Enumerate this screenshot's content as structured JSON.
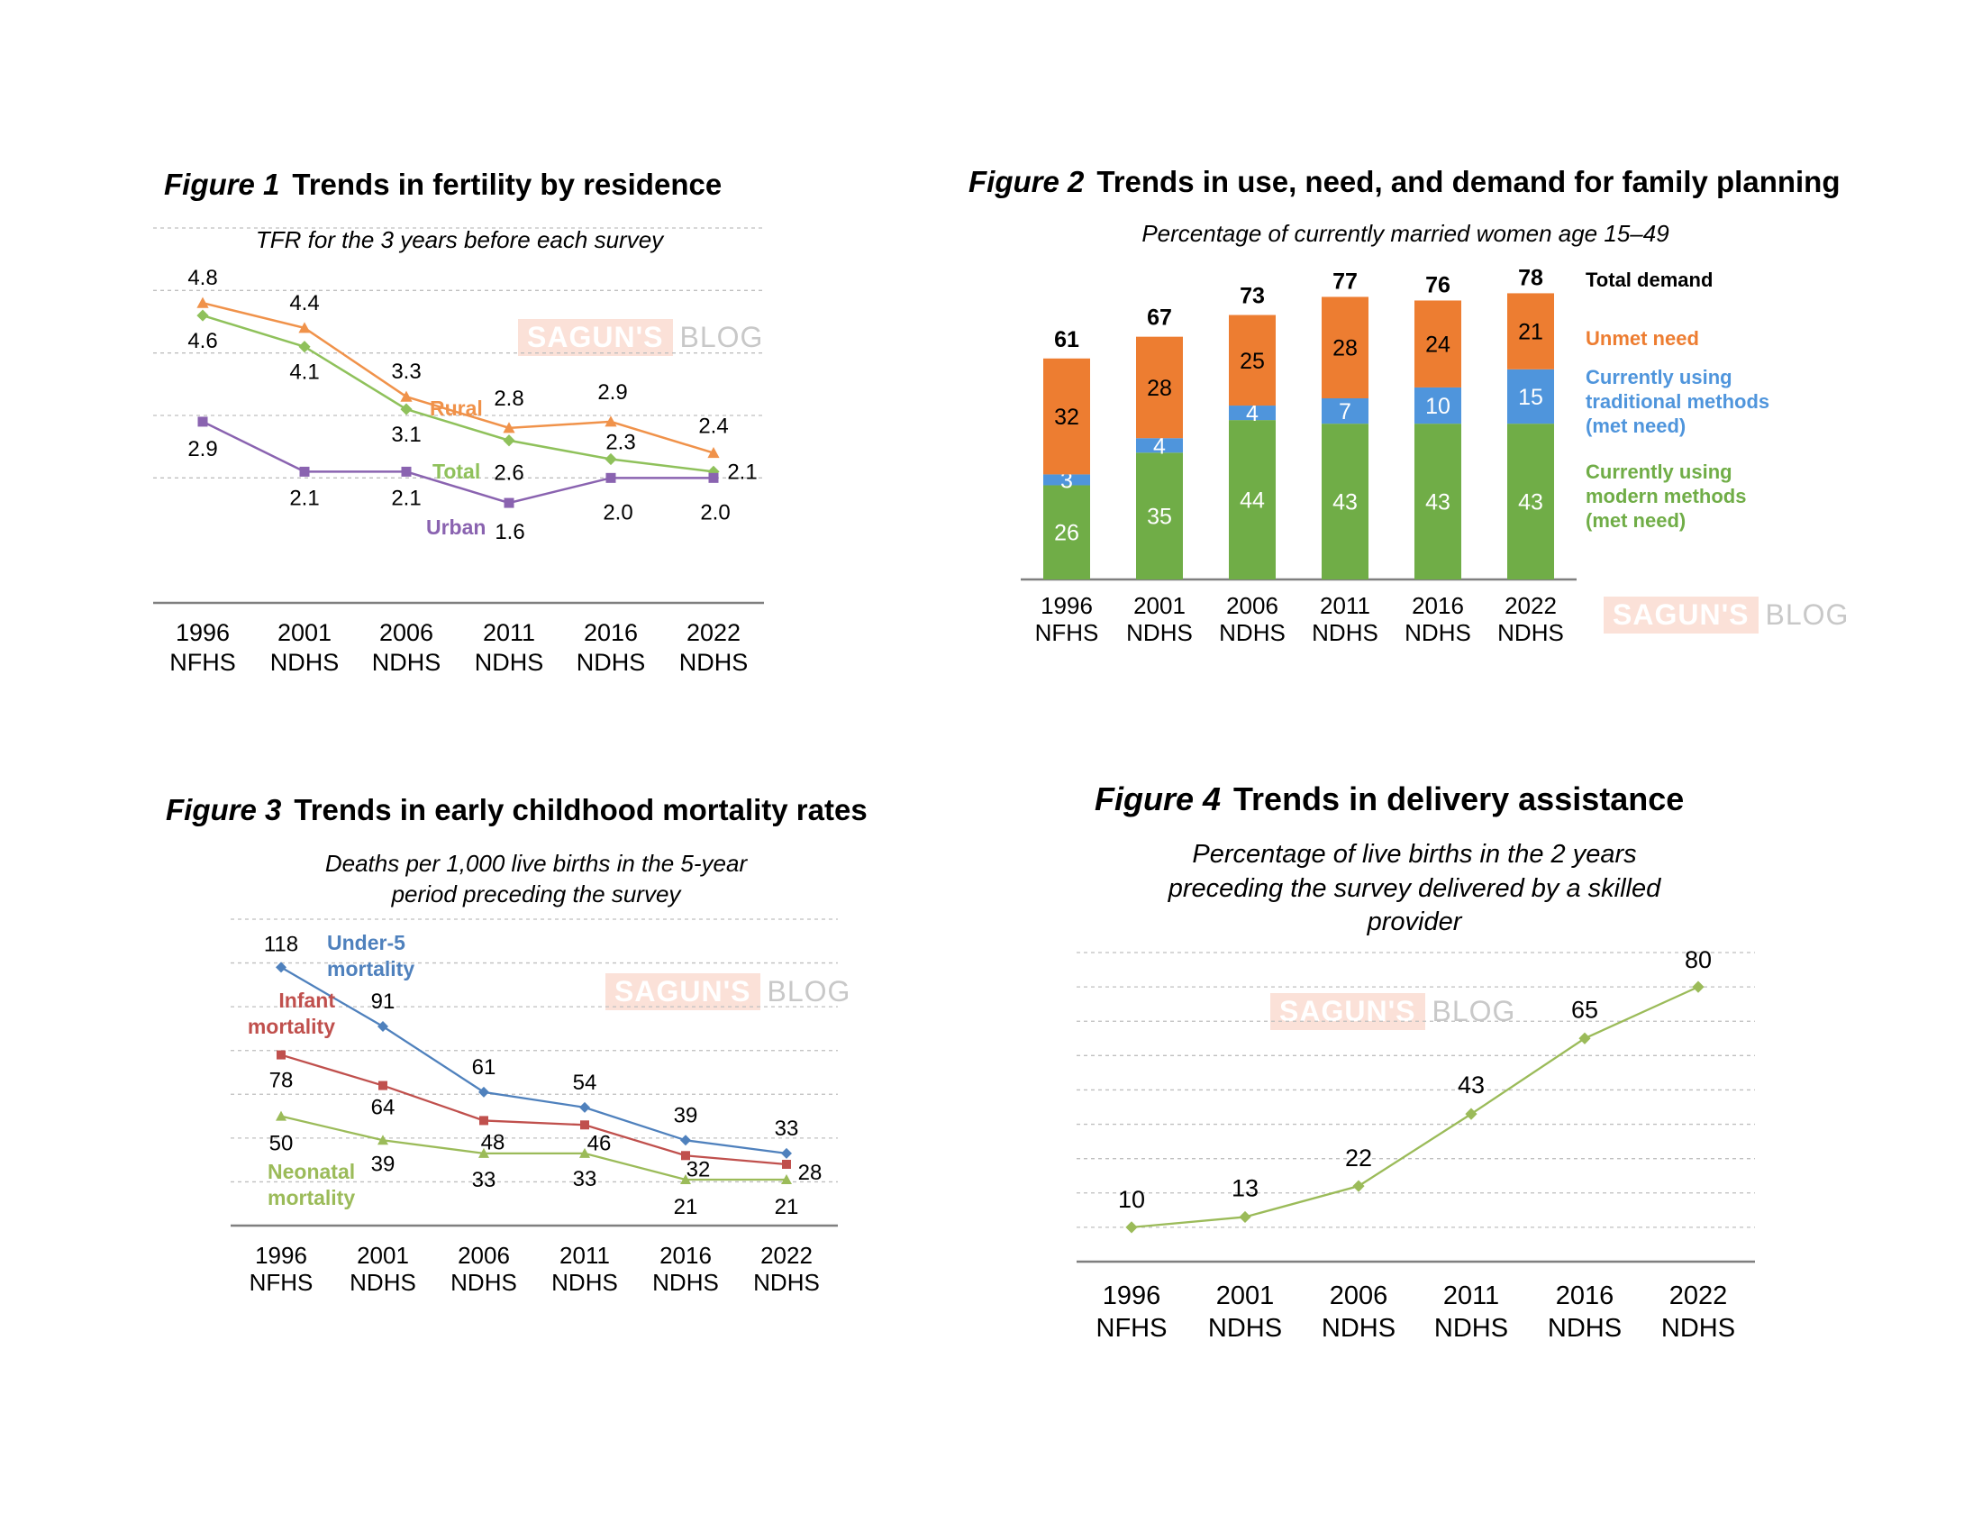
{
  "watermark": {
    "part1": "SAGUN'S",
    "part2": "BLOG"
  },
  "figures": [
    {
      "number": "Figure 1",
      "title": "Trends in fertility by residence",
      "subtitle": "TFR for the 3 years before each survey"
    },
    {
      "number": "Figure 2",
      "title": "Trends in use, need, and demand for family planning",
      "subtitle": "Percentage of currently married women age 15–49"
    },
    {
      "number": "Figure 3",
      "title": "Trends in early childhood mortality rates",
      "subtitle": "Deaths per 1,000 live births in the 5-year period preceding the survey"
    },
    {
      "number": "Figure 4",
      "title": "Trends in delivery assistance",
      "subtitle": "Percentage of live births in the 2 years preceding the survey delivered by a skilled provider"
    }
  ],
  "chart_data": [
    {
      "type": "line",
      "categories": [
        [
          "1996",
          "NFHS"
        ],
        [
          "2001",
          "NDHS"
        ],
        [
          "2006",
          "NDHS"
        ],
        [
          "2011",
          "NDHS"
        ],
        [
          "2016",
          "NDHS"
        ],
        [
          "2022",
          "NDHS"
        ]
      ],
      "ylim": [
        0,
        6
      ],
      "grid": true,
      "series": [
        {
          "name": "Rural",
          "color": "#f0924a",
          "marker": "triangle",
          "values": [
            4.8,
            4.4,
            3.3,
            2.8,
            2.9,
            2.4
          ]
        },
        {
          "name": "Total",
          "color": "#8fc15b",
          "marker": "diamond",
          "values": [
            4.6,
            4.1,
            3.1,
            2.6,
            2.3,
            2.1
          ]
        },
        {
          "name": "Urban",
          "color": "#8a63b0",
          "marker": "square",
          "values": [
            2.9,
            2.1,
            2.1,
            1.6,
            2.0,
            2.0
          ]
        }
      ]
    },
    {
      "type": "bar",
      "stacked": true,
      "categories": [
        [
          "1996",
          "NFHS"
        ],
        [
          "2001",
          "NDHS"
        ],
        [
          "2006",
          "NDHS"
        ],
        [
          "2011",
          "NDHS"
        ],
        [
          "2016",
          "NDHS"
        ],
        [
          "2022",
          "NDHS"
        ]
      ],
      "ylim": [
        0,
        80
      ],
      "series": [
        {
          "name": "Currently using modern methods (met need)",
          "legend_lines": [
            "Currently using",
            "modern methods",
            "(met need)"
          ],
          "color": "#70ad47",
          "values": [
            26,
            35,
            44,
            43,
            43,
            43
          ]
        },
        {
          "name": "Currently using traditional methods (met need)",
          "legend_lines": [
            "Currently using",
            "traditional methods",
            "(met need)"
          ],
          "color": "#4f95dc",
          "values": [
            3,
            4,
            4,
            7,
            10,
            15
          ]
        },
        {
          "name": "Unmet need",
          "legend_lines": [
            "Unmet need"
          ],
          "color": "#ed7d31",
          "values": [
            32,
            28,
            25,
            28,
            24,
            21
          ]
        }
      ],
      "totals": {
        "name": "Total demand",
        "values": [
          61,
          67,
          73,
          77,
          76,
          78
        ]
      }
    },
    {
      "type": "line",
      "categories": [
        [
          "1996",
          "NFHS"
        ],
        [
          "2001",
          "NDHS"
        ],
        [
          "2006",
          "NDHS"
        ],
        [
          "2011",
          "NDHS"
        ],
        [
          "2016",
          "NDHS"
        ],
        [
          "2022",
          "NDHS"
        ]
      ],
      "ylim": [
        0,
        140
      ],
      "grid": true,
      "series": [
        {
          "name": "Under-5 mortality",
          "label_lines": [
            "Under-5",
            "mortality"
          ],
          "color": "#4f81bd",
          "marker": "diamond",
          "values": [
            118,
            91,
            61,
            54,
            39,
            33
          ]
        },
        {
          "name": "Infant mortality",
          "label_lines": [
            "Infant",
            "mortality"
          ],
          "color": "#c0504d",
          "marker": "square",
          "values": [
            78,
            64,
            48,
            46,
            32,
            28
          ]
        },
        {
          "name": "Neonatal mortality",
          "label_lines": [
            "Neonatal",
            "mortality"
          ],
          "color": "#9bbb59",
          "marker": "triangle",
          "values": [
            50,
            39,
            33,
            33,
            21,
            21
          ]
        }
      ]
    },
    {
      "type": "line",
      "categories": [
        [
          "1996",
          "NFHS"
        ],
        [
          "2001",
          "NDHS"
        ],
        [
          "2006",
          "NDHS"
        ],
        [
          "2011",
          "NDHS"
        ],
        [
          "2016",
          "NDHS"
        ],
        [
          "2022",
          "NDHS"
        ]
      ],
      "ylim": [
        0,
        90
      ],
      "grid": true,
      "series": [
        {
          "color": "#9bbb59",
          "marker": "diamond",
          "values": [
            10,
            13,
            22,
            43,
            65,
            80
          ]
        }
      ]
    }
  ]
}
